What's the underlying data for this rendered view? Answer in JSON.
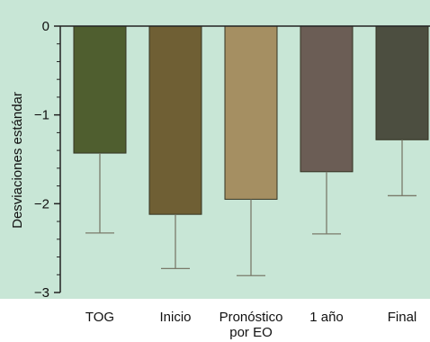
{
  "chart_data": {
    "type": "bar",
    "categories": [
      "TOG",
      "Inicio",
      "Pronóstico|por EO",
      "1 año",
      "Final"
    ],
    "series": [
      {
        "values": [
          -1.43,
          -2.12,
          -1.95,
          -1.64,
          -1.28
        ],
        "error_lower": [
          -2.33,
          -2.73,
          -2.81,
          -2.34,
          -1.91
        ],
        "colors": [
          "#4f5e2f",
          "#6f5f34",
          "#a58f62",
          "#6b5d55",
          "#4c4e40"
        ]
      }
    ],
    "title": "",
    "xlabel": "",
    "ylabel": "Desviaciones estándar",
    "ylim": [
      -3,
      0
    ],
    "yticks": [
      "0",
      "−1",
      "−2",
      "−3"
    ],
    "grid": false,
    "legend": "none",
    "background_color": "#c8e6d6",
    "axis_color": "#222222",
    "error_bar_color": "#7a7a6a"
  }
}
